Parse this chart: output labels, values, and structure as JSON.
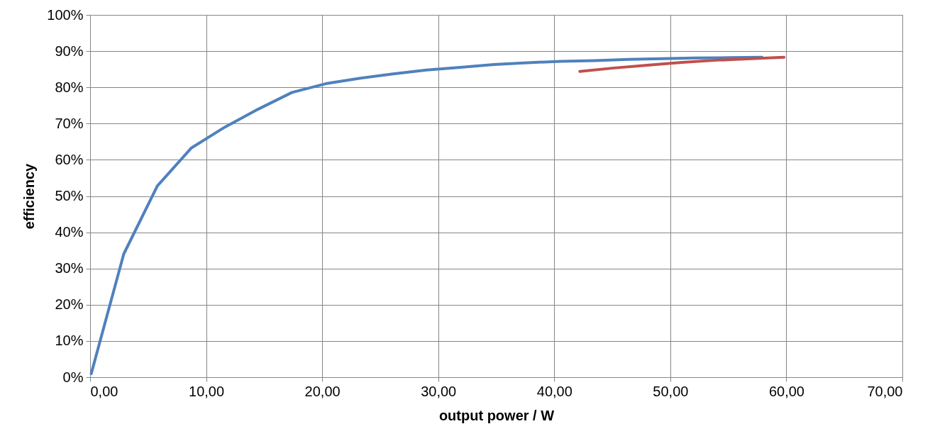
{
  "chart_data": {
    "type": "line",
    "xlabel": "output power / W",
    "ylabel": "efficiency",
    "series": [
      {
        "color": "#4f81bd",
        "x": [
          0.1,
          2.9,
          5.8,
          8.7,
          11.6,
          14.5,
          17.4,
          20.3,
          23.2,
          26.1,
          29,
          31.9,
          34.8,
          37.7,
          40.6,
          43.5,
          46.4,
          49.3,
          52.2,
          55.1,
          57.9
        ],
        "values": [
          1,
          34,
          52.8,
          63.2,
          69,
          74,
          78.6,
          81,
          82.5,
          83.7,
          84.8,
          85.5,
          86.3,
          86.8,
          87.2,
          87.4,
          87.7,
          87.9,
          88.1,
          88.2,
          88.3
        ]
      },
      {
        "color": "#c0504d",
        "x": [
          42.2,
          45,
          48,
          51,
          54,
          57,
          59.8
        ],
        "values": [
          84.4,
          85.3,
          86.1,
          86.9,
          87.5,
          87.9,
          88.3
        ]
      }
    ],
    "xlim": [
      0,
      70
    ],
    "ylim": [
      0,
      100
    ],
    "xticks": [
      {
        "value": 0,
        "label": "0,00"
      },
      {
        "value": 10,
        "label": "10,00"
      },
      {
        "value": 20,
        "label": "20,00"
      },
      {
        "value": 30,
        "label": "30,00"
      },
      {
        "value": 40,
        "label": "40,00"
      },
      {
        "value": 50,
        "label": "50,00"
      },
      {
        "value": 60,
        "label": "60,00"
      },
      {
        "value": 70,
        "label": "70,00"
      }
    ],
    "yticks": [
      {
        "value": 0,
        "label": "0%"
      },
      {
        "value": 10,
        "label": "10%"
      },
      {
        "value": 20,
        "label": "20%"
      },
      {
        "value": 30,
        "label": "30%"
      },
      {
        "value": 40,
        "label": "40%"
      },
      {
        "value": 50,
        "label": "50%"
      },
      {
        "value": 60,
        "label": "60%"
      },
      {
        "value": 70,
        "label": "70%"
      },
      {
        "value": 80,
        "label": "80%"
      },
      {
        "value": 90,
        "label": "90%"
      },
      {
        "value": 100,
        "label": "100%"
      }
    ],
    "grid": true,
    "marker": "none",
    "line_style": "solid",
    "legend": false
  }
}
